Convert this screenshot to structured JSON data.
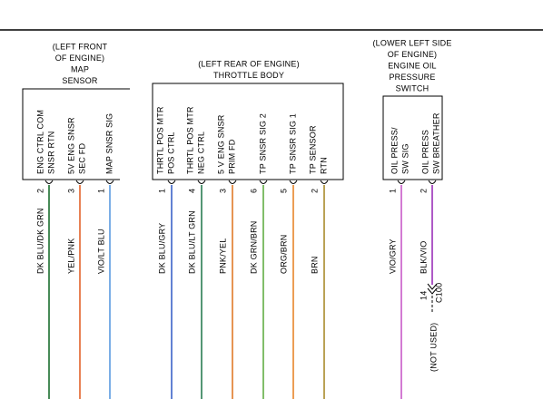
{
  "components": [
    {
      "label_lines": [
        "(LEFT FRONT",
        "OF ENGINE)",
        "MAP",
        "SENSOR"
      ],
      "pins": [
        {
          "name_lines": [
            "ENG CTRL COM",
            "SNSR RTN"
          ],
          "number": 2,
          "wire": "DK BLU/DK GRN"
        },
        {
          "name_lines": [
            "5V ENG SNSR",
            "SEC FD"
          ],
          "number": 3,
          "wire": "YEL/PNK"
        },
        {
          "name_lines": [
            "MAP SNSR SIG"
          ],
          "number": 1,
          "wire": "VIO/LT BLU"
        }
      ]
    },
    {
      "label_lines": [
        "(LEFT REAR OF ENGINE)",
        "THROTTLE BODY"
      ],
      "pins": [
        {
          "name_lines": [
            "THRTL POS MTR",
            "POS CTRL"
          ],
          "number": 1,
          "wire": "DK BLU/GRY"
        },
        {
          "name_lines": [
            "THRTL POS MTR",
            "NEG CTRL"
          ],
          "number": 4,
          "wire": "DK BLU/LT GRN"
        },
        {
          "name_lines": [
            "5 V ENG SNSR",
            "PRIM FD"
          ],
          "number": 3,
          "wire": "PNK/YEL"
        },
        {
          "name_lines": [
            "TP SNSR SIG 2"
          ],
          "number": 6,
          "wire": "DK GRN/BRN"
        },
        {
          "name_lines": [
            "TP SNSR SIG 1"
          ],
          "number": 5,
          "wire": "ORG/BRN"
        },
        {
          "name_lines": [
            "TP SENSOR",
            "RTN"
          ],
          "number": 2,
          "wire": "BRN"
        }
      ]
    },
    {
      "label_lines": [
        "(LOWER LEFT SIDE",
        "OF ENGINE)",
        "ENGINE OIL",
        "PRESSURE",
        "SWITCH"
      ],
      "pins": [
        {
          "name_lines": [
            "OIL PRESS/",
            "SW SIG"
          ],
          "number": 1,
          "wire": "VIO/GRY"
        },
        {
          "name_lines": [
            "OIL PRESS",
            "SW BREATHER"
          ],
          "number": 2,
          "wire": "BLK/VIO",
          "connector": {
            "pin": 14,
            "name": "C100",
            "note": "(NOT USED)"
          }
        }
      ]
    }
  ]
}
